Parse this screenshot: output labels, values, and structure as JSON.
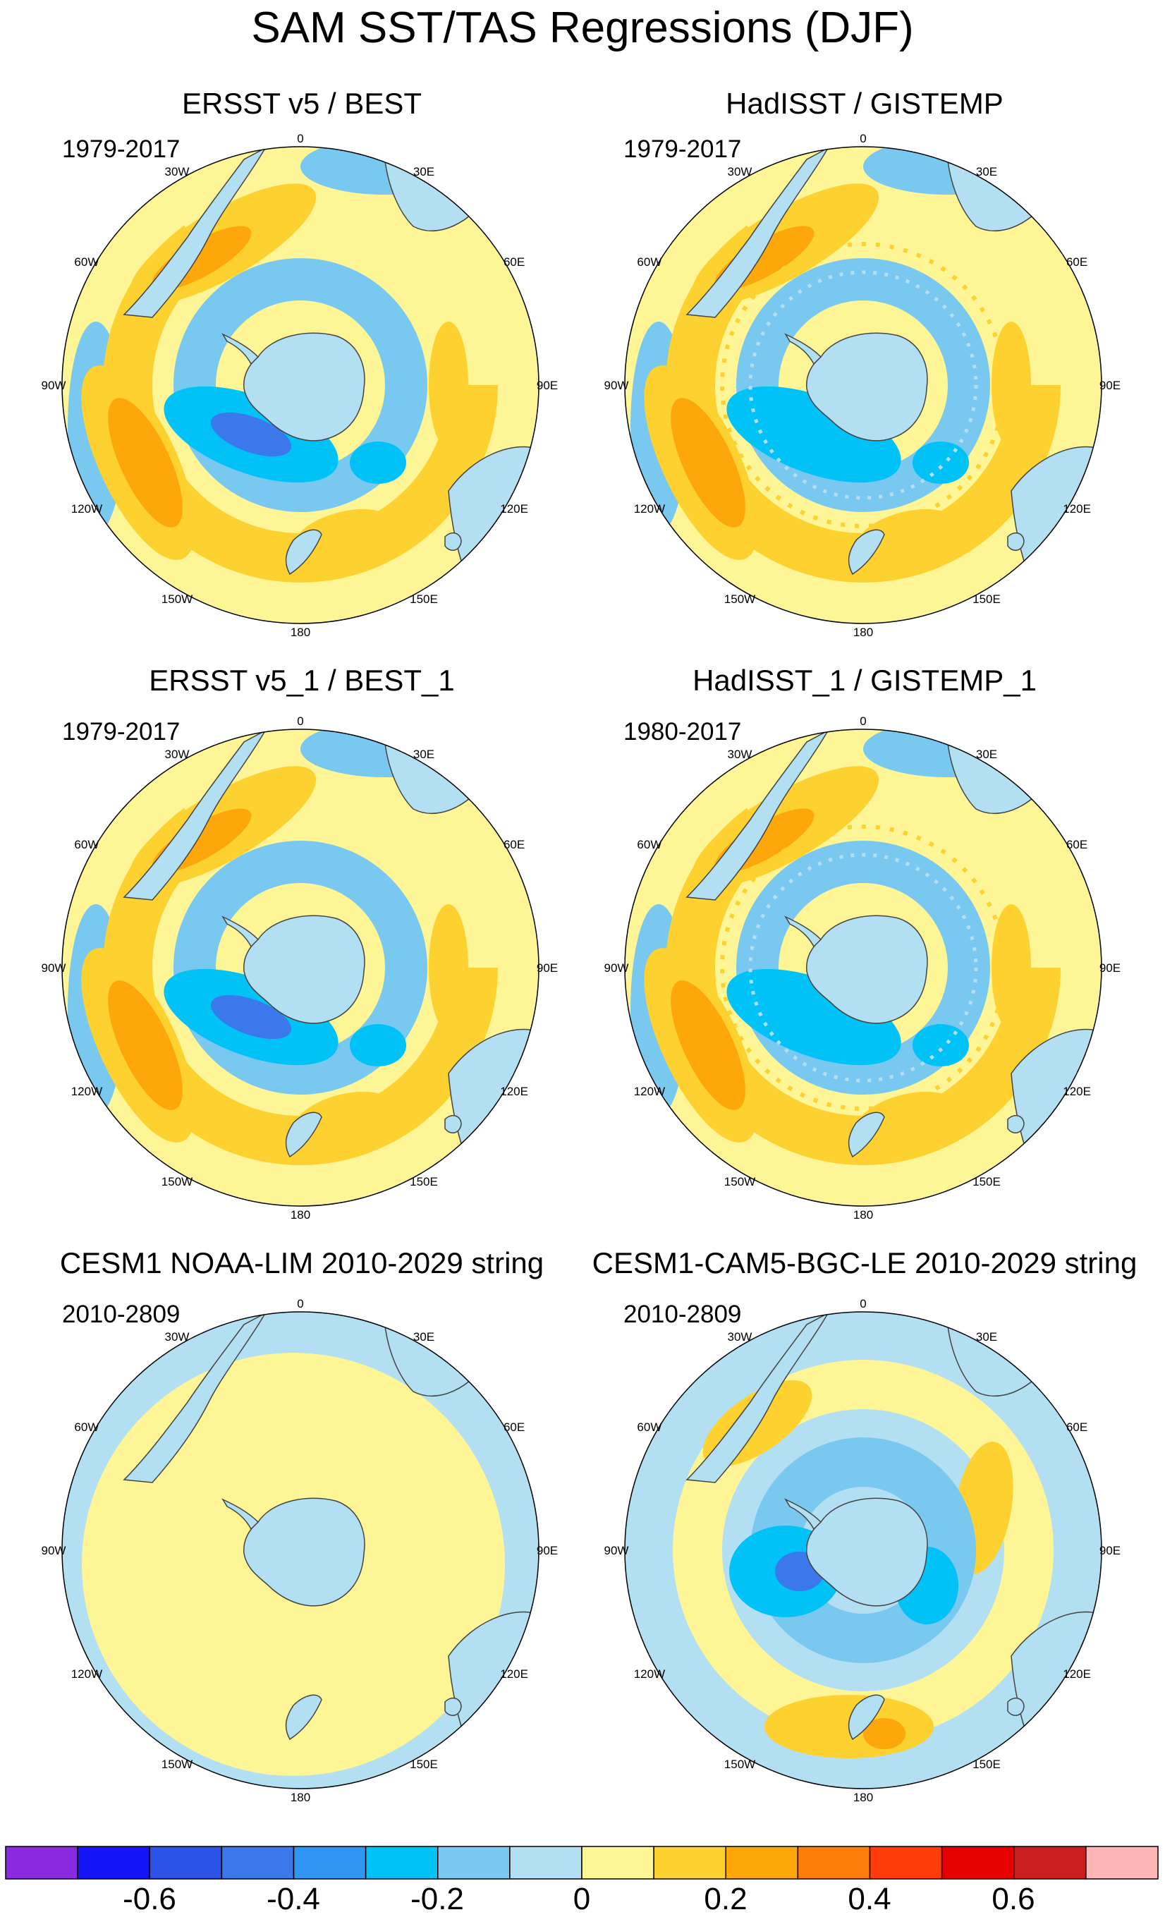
{
  "title": "SAM SST/TAS Regressions (DJF)",
  "panels": [
    {
      "title": "ERSST v5 / BEST",
      "period": "1979-2017",
      "pattern": "obs_smooth"
    },
    {
      "title": "HadISST / GISTEMP",
      "period": "1979-2017",
      "pattern": "obs_noisy"
    },
    {
      "title": "ERSST v5_1 / BEST_1",
      "period": "1979-2017",
      "pattern": "obs_smooth"
    },
    {
      "title": "HadISST_1 / GISTEMP_1",
      "period": "1980-2017",
      "pattern": "obs_noisy"
    },
    {
      "title": "CESM1 NOAA-LIM 2010-2029 string",
      "period": "2010-2809",
      "pattern": "lim_flat"
    },
    {
      "title": "CESM1-CAM5-BGC-LE 2010-2029 string",
      "period": "2010-2809",
      "pattern": "model"
    }
  ],
  "longitude_labels": [
    "0",
    "30E",
    "60E",
    "90E",
    "120E",
    "150E",
    "180",
    "150W",
    "120W",
    "90W",
    "60W",
    "30W"
  ],
  "colorbar": {
    "colors": [
      "#8a2be2",
      "#1414f5",
      "#2d52e6",
      "#3a78ec",
      "#2f96f3",
      "#00c2f7",
      "#78c8f0",
      "#b3dff3",
      "#fdf596",
      "#fdd12f",
      "#fda70a",
      "#fd7c0a",
      "#ff3c0a",
      "#e60000",
      "#cc1e1e",
      "#ffb6b6"
    ],
    "labels": [
      "-0.6",
      "-0.4",
      "-0.2",
      "0",
      "0.2",
      "0.4",
      "0.6"
    ]
  },
  "fill_colors": {
    "land": "#b3dff3",
    "near_zero_positive": "#fdf596",
    "near_zero_negative": "#b3dff3",
    "weak_negative": "#78c8f0",
    "moderate_negative": "#00c2f7",
    "strong_negative": "#3a78ec",
    "weak_positive": "#fdd12f",
    "moderate_positive": "#fda70a",
    "strong_positive": "#fd7c0a"
  }
}
